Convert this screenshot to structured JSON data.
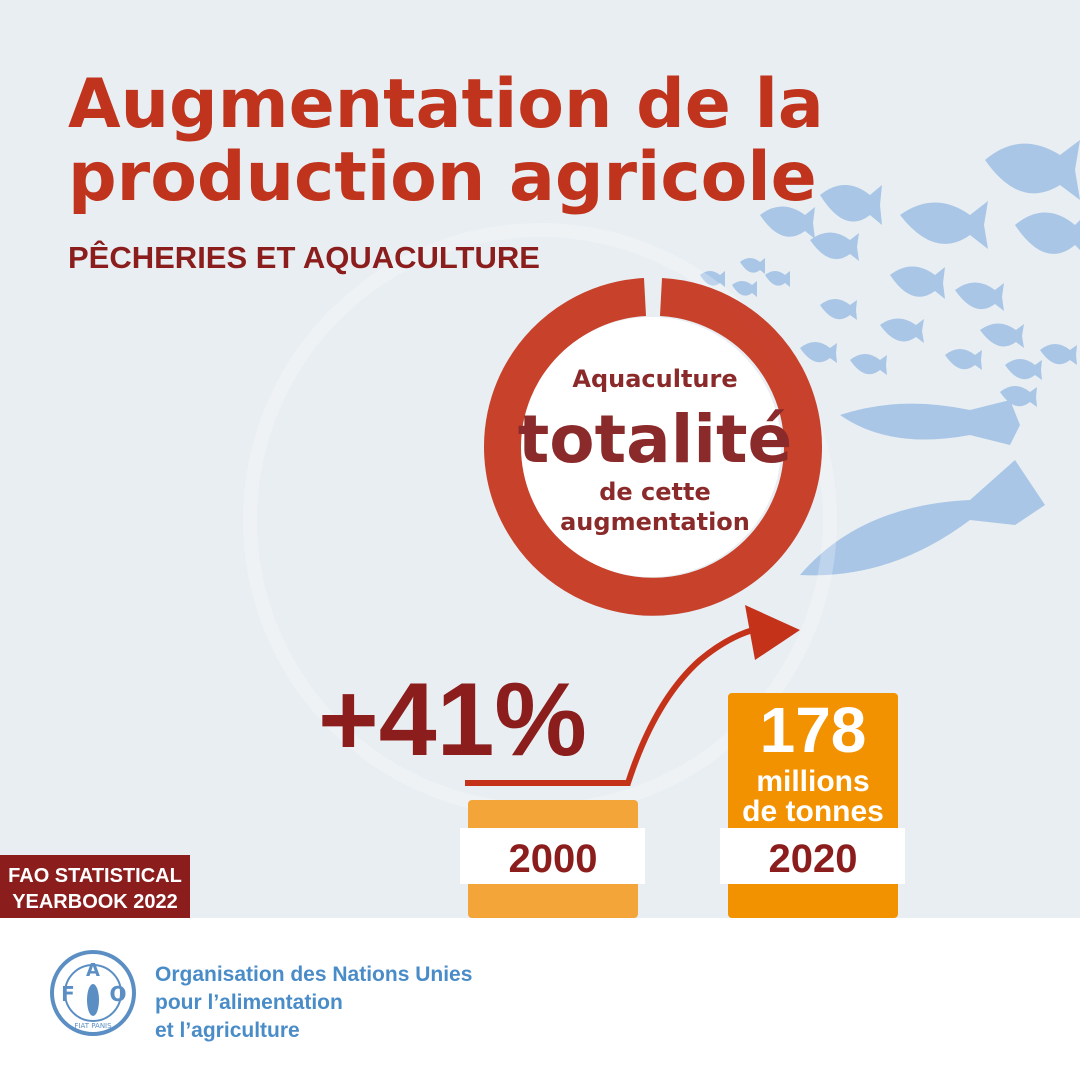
{
  "header": {
    "title_lines": [
      "Augmentation de la",
      "production agricole"
    ],
    "subtitle": "PÊCHERIES ET AQUACULTURE"
  },
  "donut": {
    "lines": [
      "Aquaculture",
      "totalité",
      "de cette",
      "augmentation"
    ]
  },
  "growth": "+41%",
  "bars": [
    {
      "year": "2000"
    },
    {
      "year": "2020",
      "value": "178",
      "unit_lines": [
        "millions",
        "de tonnes"
      ]
    }
  ],
  "badge": [
    "FAO STATISTICAL",
    "YEARBOOK 2022"
  ],
  "footer": {
    "logo": {
      "letters": [
        "F",
        "A",
        "O"
      ],
      "motto": "FIAT PANIS"
    },
    "org_lines": [
      "Organisation des Nations Unies",
      "pour l’alimentation",
      "et l’agriculture"
    ]
  }
}
